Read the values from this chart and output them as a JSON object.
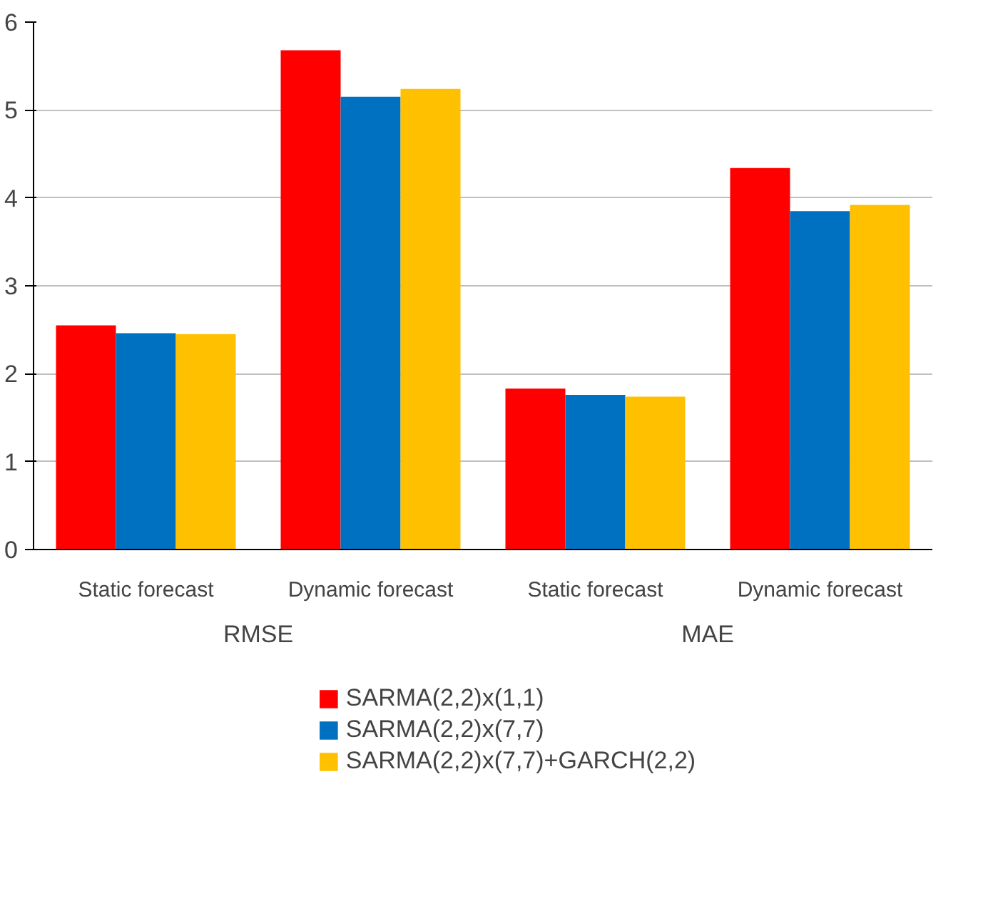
{
  "chart_data": {
    "type": "bar",
    "categories": [
      "Static forecast",
      "Dynamic forecast",
      "Static forecast",
      "Dynamic forecast"
    ],
    "annotations": [
      "RMSE",
      "MAE"
    ],
    "series": [
      {
        "name": "SARMA(2,2)x(1,1)",
        "color": "#ff0000",
        "values": [
          2.55,
          5.68,
          1.83,
          4.34
        ]
      },
      {
        "name": "SARMA(2,2)x(7,7)",
        "color": "#0070c0",
        "values": [
          2.46,
          5.15,
          1.76,
          3.85
        ]
      },
      {
        "name": "SARMA(2,2)x(7,7)+GARCH(2,2)",
        "color": "#ffc000",
        "values": [
          2.45,
          5.24,
          1.74,
          3.92
        ]
      }
    ],
    "ylim": [
      0,
      6
    ],
    "yticks": [
      0,
      1,
      2,
      3,
      4,
      5,
      6
    ],
    "grid": "y",
    "legend": "bottom"
  }
}
